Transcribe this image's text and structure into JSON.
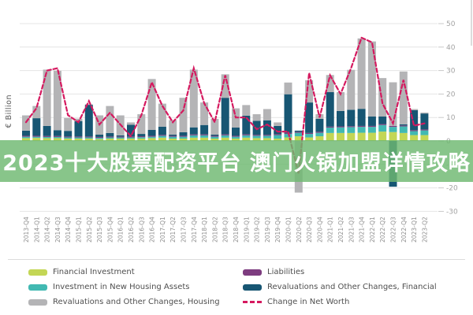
{
  "banner": {
    "text": "2023十大股票配资平台 澳门火锅加盟详情攻略",
    "bg_color": "#6eb870",
    "text_color": "#ffffff"
  },
  "ylabel": "€ Billion",
  "legend": {
    "items": [
      {
        "label": "Financial Investment",
        "color": "#c3d655",
        "type": "box"
      },
      {
        "label": "Investment in New Housing Assets",
        "color": "#41b9b2",
        "type": "box"
      },
      {
        "label": "Revaluations and Other Changes, Housing",
        "color": "#b4b4b6",
        "type": "box"
      },
      {
        "label": "Liabilities",
        "color": "#7d3c7f",
        "type": "box"
      },
      {
        "label": "Revaluations and Other Changes, Financial",
        "color": "#175673",
        "type": "box"
      },
      {
        "label": "Change in Net Worth",
        "color": "#d5195f",
        "type": "dashed-line"
      }
    ]
  },
  "chart_data": {
    "type": "bar",
    "subtype": "stacked-bar-with-line",
    "title": "",
    "xlabel": "",
    "ylabel": "€ Billion",
    "ylim": [
      -30,
      50
    ],
    "yticks": [
      50,
      40,
      30,
      20,
      10,
      0,
      -10,
      -20,
      -30
    ],
    "grid": true,
    "legend_position": "bottom",
    "categories": [
      "2013-Q4",
      "2014-Q1",
      "2014-Q2",
      "2014-Q3",
      "2014-Q4",
      "2015-Q1",
      "2015-Q2",
      "2015-Q3",
      "2015-Q4",
      "2016-Q1",
      "2016-Q2",
      "2016-Q3",
      "2016-Q4",
      "2017-Q1",
      "2017-Q2",
      "2017-Q3",
      "2017-Q4",
      "2018-Q1",
      "2018-Q2",
      "2018-Q3",
      "2018-Q4",
      "2019-Q1",
      "2019-Q2",
      "2019-Q3",
      "2019-Q4",
      "2020-Q1",
      "2020-Q2",
      "2020-Q3",
      "2020-Q4",
      "2021-Q1",
      "2021-Q2",
      "2021-Q3",
      "2021-Q4",
      "2022-Q1",
      "2022-Q2",
      "2022-Q3",
      "2022-Q4",
      "2023-Q1",
      "2023-Q2"
    ],
    "series": [
      {
        "name": "Financial Investment",
        "color": "#c3d655",
        "values": [
          1.2,
          1.3,
          1.2,
          1.2,
          1.0,
          1.0,
          1.0,
          0.8,
          1.0,
          1.0,
          1.0,
          1.0,
          1.2,
          1.4,
          1.0,
          1.0,
          1.4,
          1.4,
          1.0,
          1.4,
          1.0,
          1.4,
          1.2,
          1.2,
          1.0,
          1.5,
          2.0,
          1.5,
          2.0,
          3.4,
          3.4,
          3.4,
          3.5,
          3.5,
          4.0,
          3.8,
          3.4,
          2.5,
          2.5
        ]
      },
      {
        "name": "Investment in New Housing Assets",
        "color": "#41b9b2",
        "values": [
          0.6,
          0.5,
          0.5,
          0.5,
          0.5,
          0.5,
          0.5,
          0.5,
          0.5,
          0.5,
          0.5,
          0.6,
          0.6,
          0.8,
          0.8,
          0.8,
          1.0,
          1.0,
          0.8,
          1.0,
          0.8,
          1.0,
          1.0,
          1.0,
          1.5,
          1.5,
          1.5,
          1.5,
          1.5,
          2.3,
          2.4,
          2.5,
          2.5,
          2.5,
          2.8,
          2.2,
          2.8,
          1.7,
          2.0
        ]
      },
      {
        "name": "Liabilities",
        "color": "#7d3c7f",
        "values": [
          0.4,
          0.4,
          0.4,
          0.4,
          0.4,
          0.4,
          0.4,
          0.4,
          0.4,
          0.4,
          0.4,
          0.4,
          0.4,
          0.4,
          0.4,
          0.4,
          0.4,
          0.4,
          0.4,
          0.4,
          0.4,
          0.4,
          0.4,
          0.4,
          0.4,
          0.4,
          0.4,
          0.4,
          0.4,
          0.4,
          0.4,
          0.4,
          0.4,
          0.4,
          0.4,
          0.4,
          0.4,
          0.4,
          0.4
        ]
      },
      {
        "name": "Revaluations and Other Changes, Financial",
        "color": "#175673",
        "values": [
          2.2,
          7.5,
          4.3,
          2.5,
          2.4,
          6.6,
          13.5,
          1.0,
          1.5,
          0.5,
          5.0,
          1.0,
          2.5,
          3.5,
          0.5,
          1.5,
          3.0,
          4.0,
          0.5,
          15.6,
          3.5,
          8.0,
          6.0,
          6.2,
          3.5,
          16.5,
          0.5,
          13.0,
          5.5,
          14.7,
          6.6,
          7.0,
          7.3,
          4.0,
          3.2,
          -19.5,
          0.5,
          8.5,
          6.8
        ]
      },
      {
        "name": "Revaluations and Other Changes, Housing",
        "color": "#b4b4b6",
        "values": [
          6.5,
          5.2,
          24.0,
          25.3,
          5.5,
          1.0,
          0.2,
          8.2,
          11.5,
          8.5,
          1.0,
          8.4,
          21.7,
          9.8,
          6.2,
          14.7,
          24.6,
          9.6,
          6.7,
          10.0,
          8.2,
          4.5,
          2.8,
          4.8,
          1.5,
          5.0,
          -22.0,
          9.5,
          2.0,
          7.3,
          8.0,
          17.0,
          30.0,
          32.0,
          16.4,
          18.6,
          22.5,
          0.5,
          0.4
        ]
      }
    ],
    "line_series": {
      "name": "Change in Net Worth",
      "color": "#d5195f",
      "style": "dashed",
      "values": [
        8,
        14,
        30,
        31,
        11,
        8,
        17,
        7,
        12,
        7,
        2,
        11,
        25,
        15,
        8,
        13,
        31,
        16,
        8,
        28,
        10,
        10,
        5,
        7,
        4,
        4,
        -14,
        29,
        10,
        28,
        20,
        31,
        44,
        42,
        16,
        7.5,
        26,
        6.5,
        7.5
      ]
    }
  }
}
